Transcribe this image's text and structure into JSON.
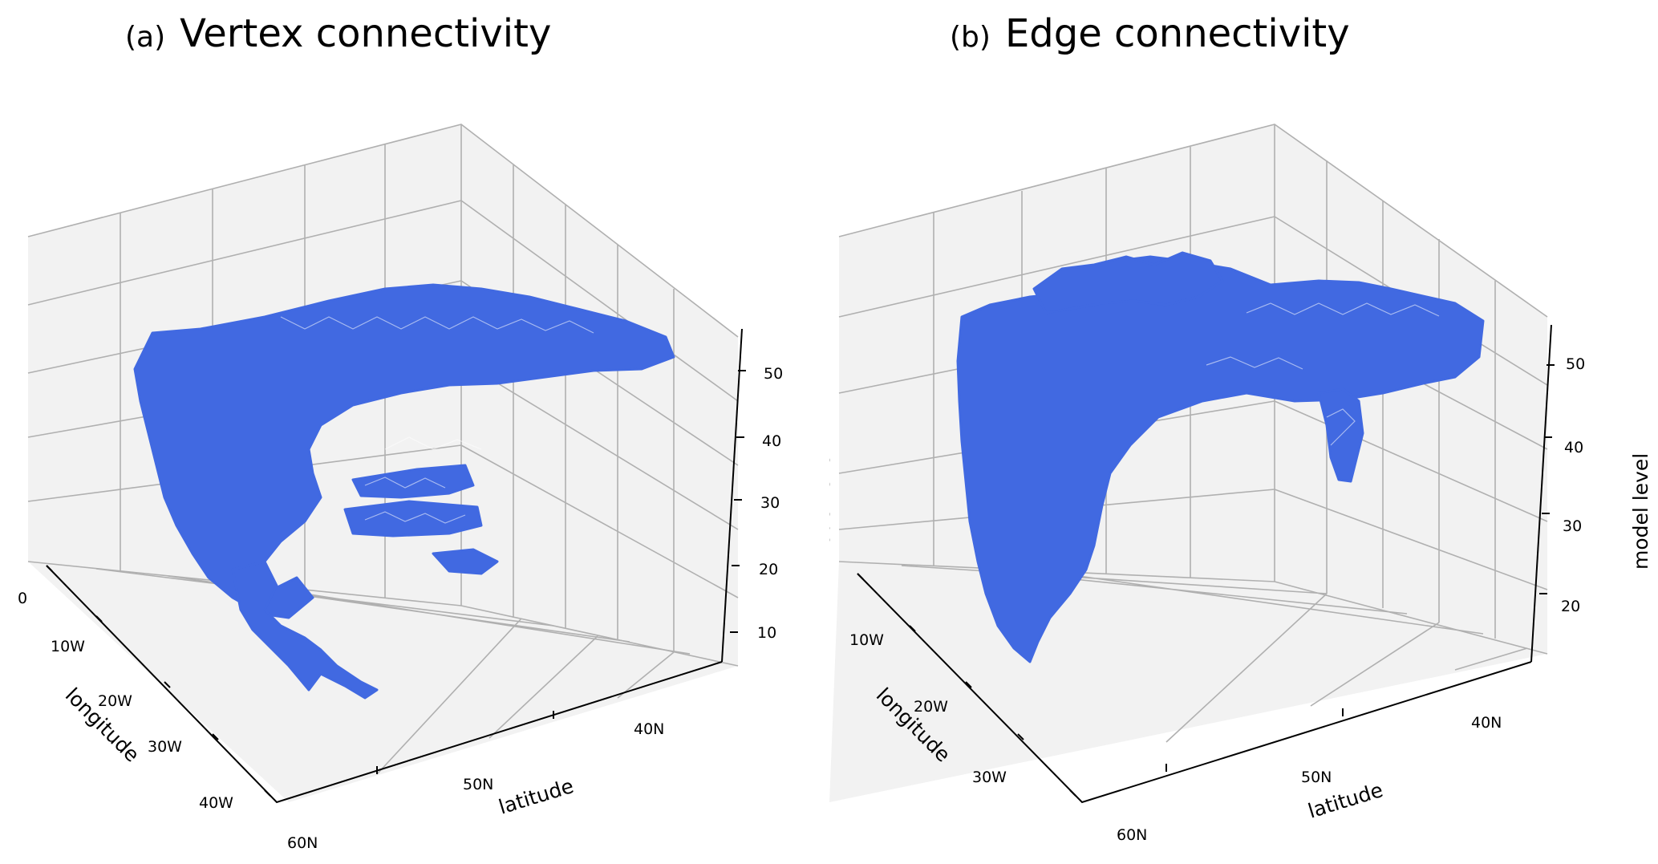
{
  "chart_data": [
    {
      "type": "3d-mesh",
      "panel_label": "(a)",
      "title": "Vertex connectivity",
      "xlabel": "longitude",
      "ylabel": "latitude",
      "zlabel": "",
      "x_ticks": [
        "0",
        "10W",
        "20W",
        "30W",
        "40W"
      ],
      "y_ticks": [
        "60N",
        "50N",
        "40N"
      ],
      "z_ticks": [
        "10",
        "20",
        "30",
        "40",
        "50"
      ],
      "series_color": "#4169e1",
      "grid": true
    },
    {
      "type": "3d-mesh",
      "panel_label": "(b)",
      "title": "Edge connectivity",
      "xlabel": "longitude",
      "ylabel": "latitude",
      "zlabel": "model level",
      "x_ticks": [
        "10W",
        "20W",
        "30W"
      ],
      "y_ticks": [
        "60N",
        "50N",
        "40N"
      ],
      "z_ticks": [
        "20",
        "30",
        "40",
        "50"
      ],
      "series_color": "#4169e1",
      "grid": true
    }
  ],
  "colors": {
    "pane": "#f2f2f2",
    "grid": "#b0b0b0",
    "mesh": "#4169e1"
  }
}
